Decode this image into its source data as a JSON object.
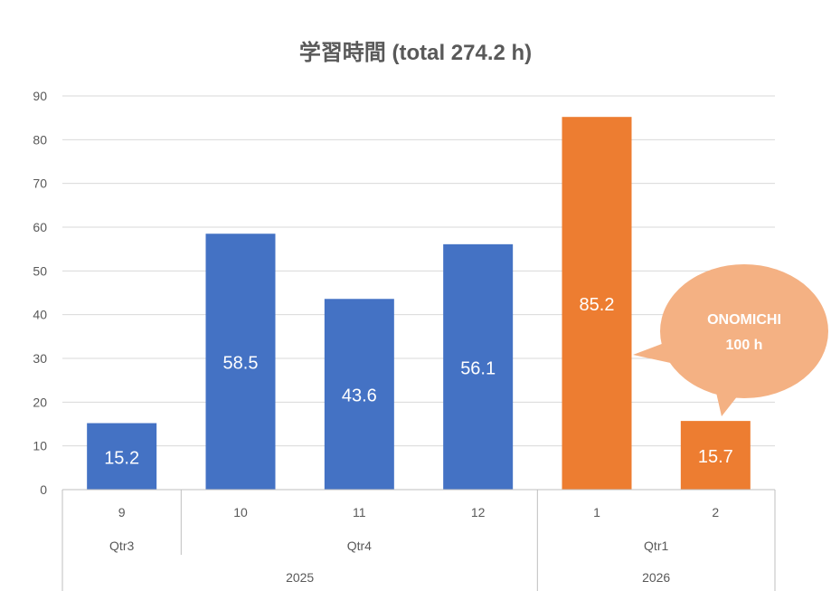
{
  "chart_data": {
    "type": "bar",
    "title": "学習時間 (total 274.2 h)",
    "categories": [
      "9",
      "10",
      "11",
      "12",
      "1",
      "2"
    ],
    "quarters": [
      {
        "label": "Qtr3",
        "count": 1
      },
      {
        "label": "Qtr4",
        "count": 3
      },
      {
        "label": "Qtr1",
        "count": 2
      }
    ],
    "years": [
      {
        "label": "2025",
        "count": 4
      },
      {
        "label": "2026",
        "count": 2
      }
    ],
    "values": [
      15.2,
      58.5,
      43.6,
      56.1,
      85.2,
      15.7
    ],
    "data_labels": [
      "15.2",
      "58.5",
      "43.6",
      "56.1",
      "85.2",
      "15.7"
    ],
    "bar_colors": [
      "#4472C4",
      "#4472C4",
      "#4472C4",
      "#4472C4",
      "#ED7D31",
      "#ED7D31"
    ],
    "ylim": [
      0,
      90
    ],
    "yticks": [
      0,
      10,
      20,
      30,
      40,
      50,
      60,
      70,
      80,
      90
    ],
    "grid": true,
    "callout": {
      "line1": "ONOMICHI",
      "line2": "100 h",
      "color": "#F4B183"
    }
  }
}
